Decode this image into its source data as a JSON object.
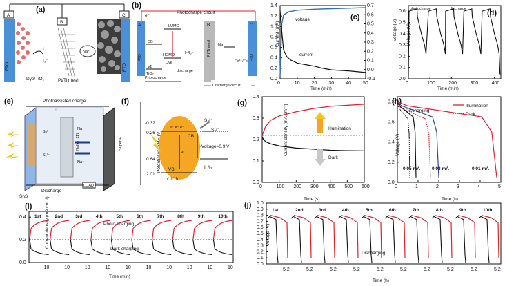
{
  "colors": {
    "red": "#e0202a",
    "black": "#111111",
    "blue": "#2f7fc2",
    "orange": "#f5a623",
    "grey": "#9a9a9a"
  },
  "panel_a": {
    "label": "(a)",
    "elec_a": "A",
    "elec_b": "B",
    "elec_c": "C",
    "fto": "FTO",
    "dye": "Dye/TiO₂",
    "mesh": "Pt/Ti mesh",
    "iodide": "I⁻",
    "triiodide": "I₃⁻",
    "na": "Na⁺"
  },
  "panel_b": {
    "label": "(b)",
    "photocharge_circuit": "Photocharge circuit",
    "discharge_circuit": "Discharge circuit",
    "lumo": "LUMO",
    "homo": "HOMO",
    "dye": "Dye",
    "cb": "CB",
    "vb": "VB",
    "tio2": "TiO₂",
    "fto": "FTO",
    "mesh": "Pt/Ti mesh",
    "redox": "I⁻/I₃⁻",
    "fe": "Fe³⁺/Fe²⁺",
    "na": "Na⁺",
    "photocharge": "Photocharge",
    "discharge": "discharge",
    "e": "e⁻",
    "fto_c": "FTO",
    "elec_a": "A",
    "elec_b": "B",
    "elec_c": "C"
  },
  "chart_c": {
    "label": "(c)",
    "xlabel": "Time (min)",
    "ylabel": "Current (mA)",
    "y2label": "Voltage (V)",
    "voltage_label": "voltage",
    "current_label": "current",
    "xticks": [
      "0",
      "10",
      "20",
      "30",
      "40",
      "50"
    ],
    "yticks": [
      "0.0",
      "0.2",
      "0.4",
      "0.6",
      "0.8",
      "1.0",
      "1.2",
      "1.4"
    ],
    "y2ticks": [
      "-0.1",
      "0.0",
      "0.1",
      "0.2",
      "0.3",
      "0.4",
      "0.5",
      "0.6",
      "0.7"
    ]
  },
  "chart_d": {
    "label": "(d)",
    "xlabel": "Time (min)",
    "ylabel": "Voltage (V)",
    "photocharge": "photocharge",
    "discharge": "discharge",
    "xticks": [
      "0",
      "100",
      "200",
      "300",
      "400"
    ],
    "yticks": [
      "0.0",
      "0.1",
      "0.2",
      "0.3",
      "0.4",
      "0.5",
      "0.6"
    ]
  },
  "panel_e": {
    "label": "(e)",
    "photoassisted": "Photoassisted charge",
    "discharge": "Discharge",
    "sns": "SnS",
    "superp": "Super P",
    "nafion": "Nafion 117",
    "load": "LOAD",
    "na": "Na⁺",
    "e": "e⁻",
    "s4": "S₄²⁻",
    "s2": "S₂²⁻"
  },
  "panel_f": {
    "label": "(f)",
    "ylabel": "Potential vs. NHE (V)",
    "levels": [
      "-0.32",
      "-0.26",
      "0.64",
      "2.01"
    ],
    "cb": "CB",
    "vb": "VB",
    "voltage": "~Voltage=0.9 V",
    "redox": "I⁻/I₃⁻",
    "s4": "S₄²⁻",
    "s2": "S₂²⁻",
    "e": "e⁻",
    "h": "h⁺ h⁺ h⁺",
    "ee": "e⁻ e⁻ e⁻"
  },
  "chart_g": {
    "label": "(g)",
    "xlabel": "Time (s)",
    "ylabel": "Current density (mA cm⁻²)",
    "illumination": "Illumination",
    "dark": "Dark",
    "xticks": [
      "0",
      "100",
      "200",
      "300",
      "400",
      "500",
      "600"
    ],
    "yticks": [
      "0.0",
      "0.1",
      "0.2",
      "0.3",
      "0.4"
    ]
  },
  "chart_h": {
    "label": "(h)",
    "xlabel": "Time (h)",
    "ylabel": "Voltage (V)",
    "title": "Discharging",
    "legend_illum": "Illumination",
    "legend_dark": "Dark",
    "c1": "0.05 mA",
    "c2": "0.03 mA",
    "c3": "0.01 mA",
    "xticks": [
      "0",
      "1",
      "2",
      "3",
      "4",
      "5"
    ],
    "yticks": [
      "0.0",
      "0.2",
      "0.4",
      "0.6",
      "0.8"
    ]
  },
  "chart_i": {
    "label": "(i)",
    "xlabel": "Time (min)",
    "ylabel": "Current density (mA cm⁻²)",
    "photo": "Photo-charging",
    "dark": "Dark-charging",
    "cycles": [
      "1st",
      "2nd",
      "3rd",
      "4th",
      "5th",
      "6th",
      "7th",
      "8th",
      "9th",
      "10th"
    ],
    "tick": "10",
    "yticks": [
      "0.0",
      "0.2",
      "0.4"
    ]
  },
  "chart_j": {
    "label": "(j)",
    "xlabel": "Time (h)",
    "ylabel": "Voltage (V)",
    "discharging": "Discharging",
    "cycles": [
      "1st",
      "2nd",
      "3rd",
      "4th",
      "5th",
      "6th",
      "7th",
      "8th",
      "9th",
      "10th"
    ],
    "tick": "5.2",
    "yticks": [
      "0.0",
      "0.1",
      "0.2",
      "0.3",
      "0.4",
      "0.5",
      "0.6",
      "0.7",
      "0.8",
      "0.9",
      "1.0"
    ]
  },
  "chart_data": [
    {
      "type": "line",
      "title": "(c)",
      "xlabel": "Time (min)",
      "ylabel": "Current (mA)",
      "xlim": [
        0,
        50
      ],
      "ylim": [
        0,
        1.4
      ],
      "series": [
        {
          "name": "voltage",
          "x": [
            0,
            1,
            2,
            5,
            10,
            20,
            30,
            40,
            50
          ],
          "y": [
            0.05,
            1.05,
            1.22,
            1.28,
            1.31,
            1.33,
            1.34,
            1.35,
            1.36
          ]
        },
        {
          "name": "current",
          "x": [
            0,
            1,
            2,
            4,
            6,
            10,
            15,
            20,
            25,
            30,
            40,
            50
          ],
          "y": [
            1.3,
            0.9,
            0.55,
            0.42,
            0.36,
            0.3,
            0.27,
            0.24,
            0.2,
            0.17,
            0.15,
            0.12
          ]
        }
      ]
    },
    {
      "type": "line",
      "title": "(d)",
      "xlabel": "Time (min)",
      "ylabel": "Voltage (V)",
      "xlim": [
        0,
        430
      ],
      "ylim": [
        0,
        0.65
      ],
      "cycles": 5
    },
    {
      "type": "line",
      "title": "(g)",
      "xlabel": "Time (s)",
      "ylabel": "Current density (mA cm-2)",
      "xlim": [
        0,
        600
      ],
      "ylim": [
        0,
        0.4
      ],
      "series": [
        {
          "name": "Illumination",
          "x": [
            0,
            20,
            50,
            100,
            200,
            300,
            400,
            500,
            600
          ],
          "y": [
            0.22,
            0.26,
            0.29,
            0.31,
            0.33,
            0.345,
            0.355,
            0.36,
            0.365
          ]
        },
        {
          "name": "Dark",
          "x": [
            0,
            20,
            50,
            100,
            200,
            300,
            400,
            500,
            600
          ],
          "y": [
            0.21,
            0.19,
            0.18,
            0.17,
            0.16,
            0.155,
            0.15,
            0.148,
            0.147
          ]
        }
      ]
    },
    {
      "type": "line",
      "title": "(h)",
      "xlabel": "Time (h)",
      "ylabel": "Voltage (V)",
      "xlim": [
        0,
        5
      ],
      "ylim": [
        0,
        0.85
      ],
      "series": [
        {
          "name": "Illumination 0.05 mA",
          "end": 0.9
        },
        {
          "name": "Illumination 0.03 mA",
          "end": 2.0
        },
        {
          "name": "Illumination 0.01 mA",
          "end": 4.8
        },
        {
          "name": "Dark 0.05 mA",
          "end": 0.6
        },
        {
          "name": "Dark 0.03 mA",
          "end": 1.6
        }
      ]
    },
    {
      "type": "line",
      "title": "(i)",
      "xlabel": "Time (min)",
      "ylabel": "Current density",
      "cycles": 10,
      "photo_level": 0.35,
      "dark_level": 0.1
    },
    {
      "type": "line",
      "title": "(j)",
      "xlabel": "Time (h)",
      "ylabel": "Voltage (V)",
      "cycles": 10,
      "start": 0.8,
      "end": 0.65
    }
  ]
}
